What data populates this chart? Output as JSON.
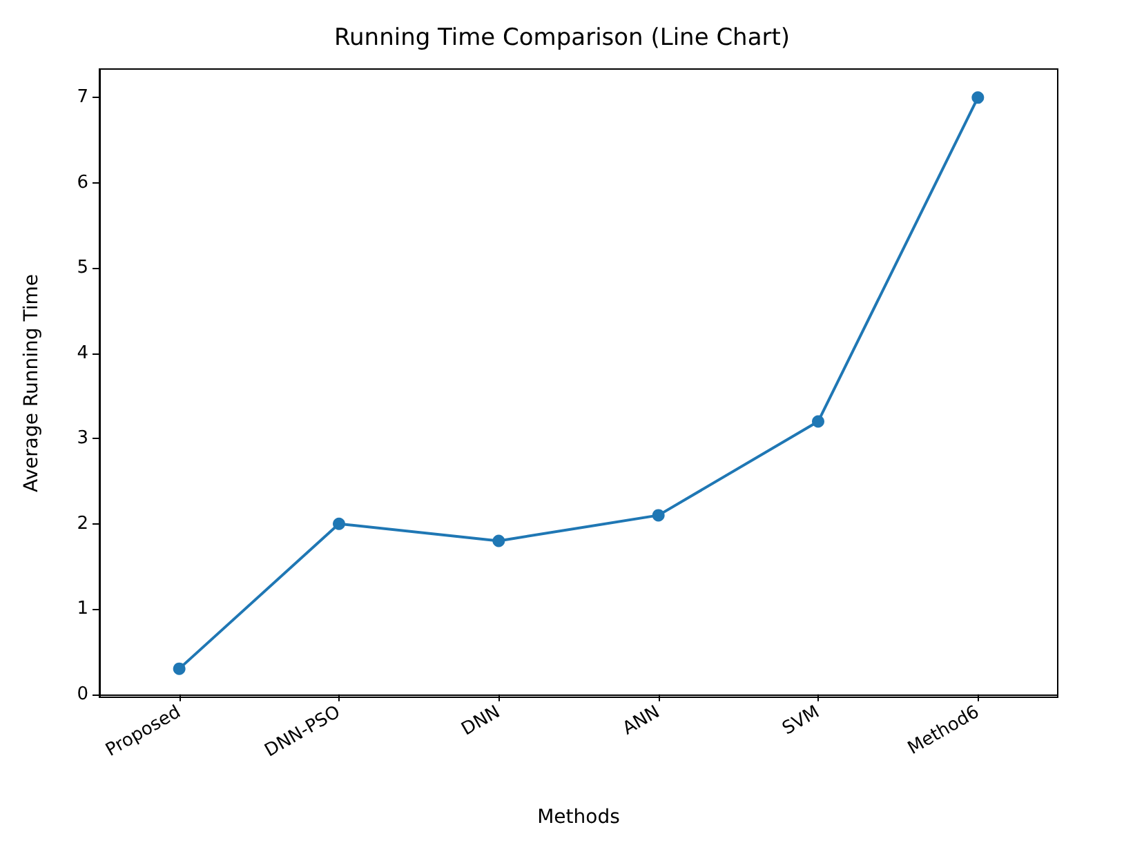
{
  "chart_data": {
    "type": "line",
    "title": "Running Time Comparison (Line Chart)",
    "xlabel": "Methods",
    "ylabel": "Average Running Time",
    "categories": [
      "Proposed",
      "DNN-PSO",
      "DNN",
      "ANN",
      "SVM",
      "Method6"
    ],
    "series": [
      {
        "color": "#1f77b4",
        "values": [
          0.3,
          2.0,
          1.8,
          2.1,
          3.2,
          7.0
        ]
      }
    ],
    "ylim": [
      -0.035,
      7.335
    ],
    "yticks": [
      0,
      1,
      2,
      3,
      4,
      5,
      6,
      7
    ],
    "grid": false,
    "marker": "circle",
    "line_style": "solid"
  }
}
